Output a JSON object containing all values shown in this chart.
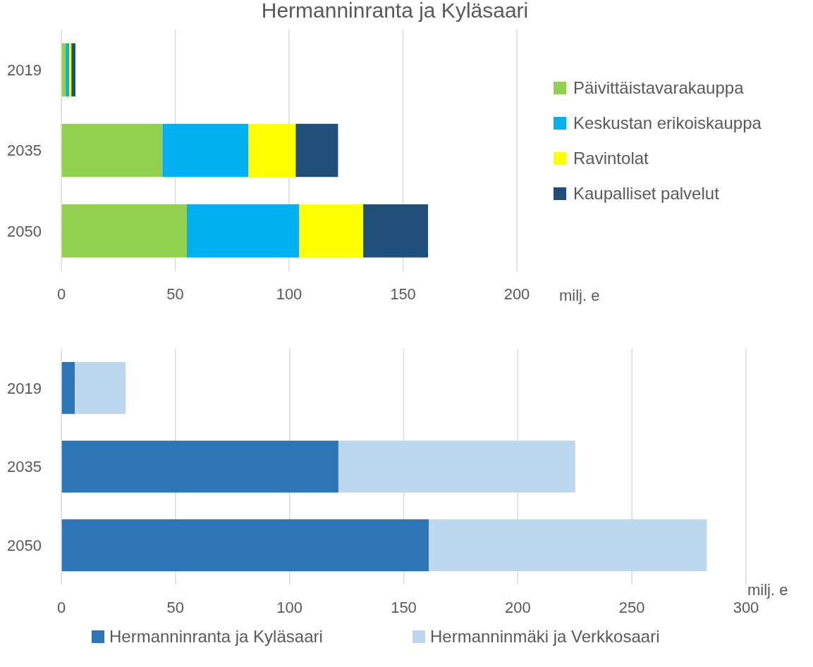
{
  "chart_data": [
    {
      "type": "bar",
      "title": "Hermanninranta ja Kyläsaari",
      "orientation": "horizontal",
      "stacked": true,
      "categories": [
        "2019",
        "2035",
        "2050"
      ],
      "xlabel": "milj. e",
      "xlim": [
        0,
        200
      ],
      "xticks": [
        0,
        50,
        100,
        150,
        200
      ],
      "grid": "x",
      "legend": "right",
      "series": [
        {
          "name": "Päivittäistavarakauppa",
          "color": "#92d050",
          "values": [
            1.9,
            44.4,
            55.1
          ]
        },
        {
          "name": "Keskustan erikoiskauppa",
          "color": "#00b0f0",
          "values": [
            1.6,
            37.8,
            49.4
          ]
        },
        {
          "name": "Ravintolat",
          "color": "#ffff00",
          "values": [
            0.9,
            20.7,
            28.0
          ]
        },
        {
          "name": "Kaupalliset palvelut",
          "color": "#1f4e79",
          "values": [
            1.8,
            18.6,
            28.5
          ]
        }
      ]
    },
    {
      "type": "bar",
      "orientation": "horizontal",
      "stacked": true,
      "categories": [
        "2019",
        "2035",
        "2050"
      ],
      "xlabel": "milj. e",
      "xlim": [
        0,
        300
      ],
      "xticks": [
        0,
        50,
        100,
        150,
        200,
        250,
        300
      ],
      "grid": "x",
      "legend": "bottom",
      "series": [
        {
          "name": "Hermanninranta ja Kyläsaari",
          "color": "#2e75b6",
          "values": [
            5.9,
            121.4,
            161.0
          ]
        },
        {
          "name": "Hermanninmäki ja Verkkosaari",
          "color": "#bdd7ee",
          "values": [
            22.3,
            103.8,
            121.8
          ]
        }
      ]
    }
  ]
}
